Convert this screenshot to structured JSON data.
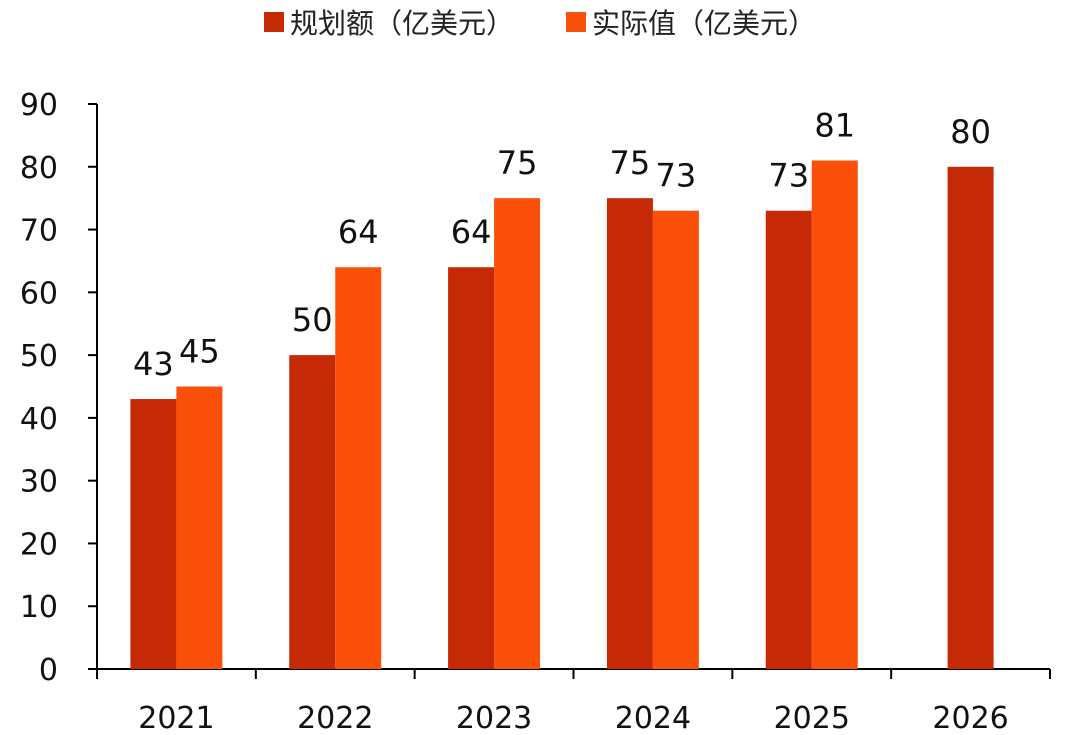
{
  "chart_data": {
    "type": "bar",
    "categories": [
      "2021",
      "2022",
      "2023",
      "2024",
      "2025",
      "2026"
    ],
    "series": [
      {
        "name": "规划额（亿美元）",
        "color": "#C62906",
        "values": [
          43,
          50,
          64,
          75,
          73,
          80
        ]
      },
      {
        "name": "实际值（亿美元）",
        "color": "#FA5009",
        "values": [
          45,
          64,
          75,
          73,
          81,
          null
        ]
      }
    ],
    "ylim": [
      0,
      90
    ],
    "yticks": [
      "0",
      "10",
      "20",
      "30",
      "40",
      "50",
      "60",
      "70",
      "80",
      "90"
    ],
    "title": "",
    "xlabel": "",
    "ylabel": "",
    "legend_position": "top-center",
    "grid": false
  }
}
